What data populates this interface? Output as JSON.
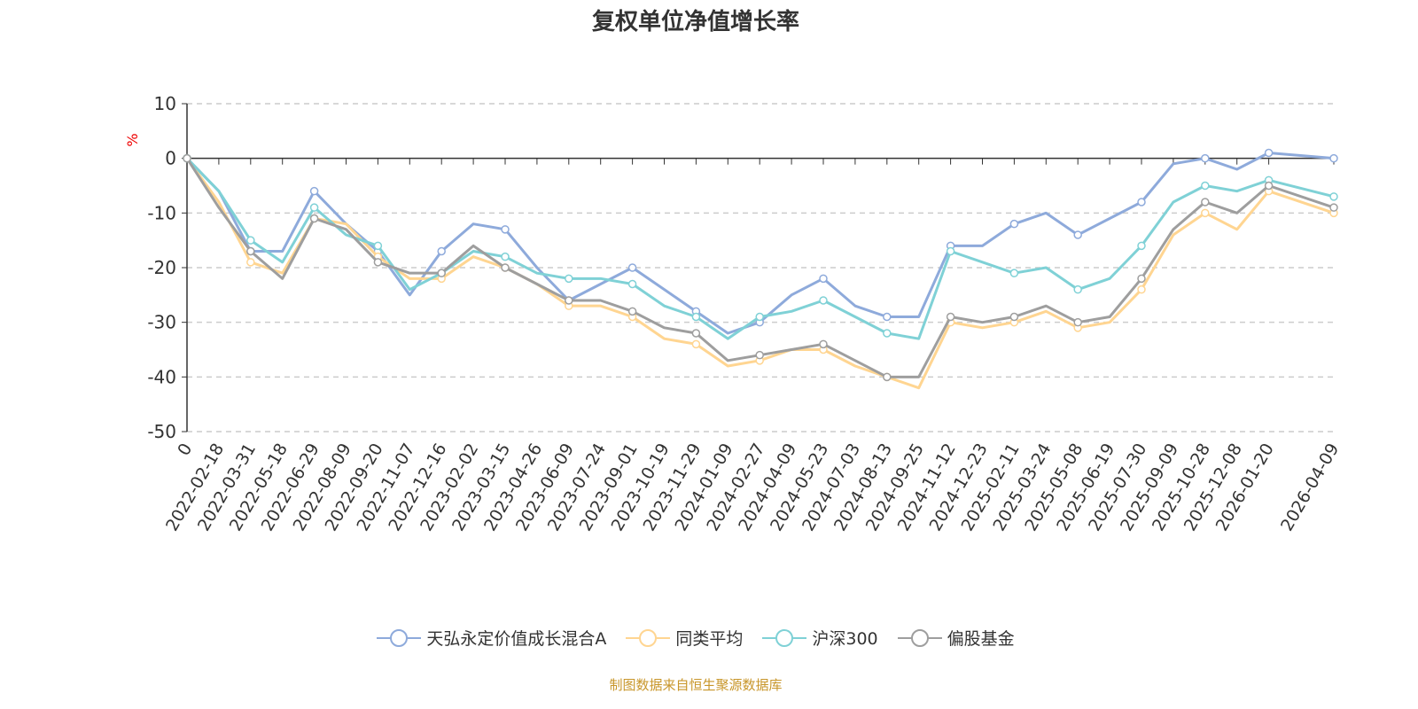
{
  "chart_data": {
    "type": "line",
    "title": "复权单位净值增长率",
    "ylabel": "%",
    "xlabel": "",
    "ylim": [
      -50,
      10
    ],
    "yticks": [
      10,
      0,
      -10,
      -20,
      -30,
      -40,
      -50
    ],
    "grid": true,
    "legend_position": "bottom",
    "x": [
      "0",
      "2022-02-18",
      "2022-03-31",
      "2022-05-18",
      "2022-06-29",
      "2022-08-09",
      "2022-09-20",
      "2022-11-07",
      "2022-12-16",
      "2023-02-02",
      "2023-03-15",
      "2023-04-26",
      "2023-06-09",
      "2023-07-24",
      "2023-09-01",
      "2023-10-19",
      "2023-11-29",
      "2024-01-09",
      "2024-02-27",
      "2024-04-09",
      "2024-05-23",
      "2024-07-03",
      "2024-08-13",
      "2024-09-25",
      "2024-11-12",
      "2024-12-23",
      "2025-02-11",
      "2025-03-24",
      "2025-05-08",
      "2025-06-19",
      "2025-07-30",
      "2025-09-09",
      "2025-10-28",
      "2025-12-08",
      "2026-01-20",
      "2026-04-09"
    ],
    "series": [
      {
        "name": "天弘永定价值成长混合A",
        "color": "#8eaadb",
        "values": [
          0,
          -6,
          -17,
          -17,
          -6,
          -12,
          -17,
          -25,
          -17,
          -12,
          -13,
          -20,
          -26,
          -23,
          -20,
          -24,
          -28,
          -32,
          -30,
          -25,
          -22,
          -27,
          -29,
          -29,
          -16,
          -16,
          -12,
          -10,
          -14,
          -11,
          -8,
          -1,
          0,
          -2,
          1,
          0
        ]
      },
      {
        "name": "同类平均",
        "color": "#ffd591",
        "values": [
          0,
          -8,
          -19,
          -21,
          -11,
          -12,
          -18,
          -22,
          -22,
          -18,
          -20,
          -23,
          -27,
          -27,
          -29,
          -33,
          -34,
          -38,
          -37,
          -35,
          -35,
          -38,
          -40,
          -42,
          -30,
          -31,
          -30,
          -28,
          -31,
          -30,
          -24,
          -14,
          -10,
          -13,
          -6,
          -10
        ]
      },
      {
        "name": "沪深300",
        "color": "#7fd1d6",
        "values": [
          0,
          -6,
          -15,
          -19,
          -9,
          -14,
          -16,
          -24,
          -21,
          -17,
          -18,
          -21,
          -22,
          -22,
          -23,
          -27,
          -29,
          -33,
          -29,
          -28,
          -26,
          -29,
          -32,
          -33,
          -17,
          -19,
          -21,
          -20,
          -24,
          -22,
          -16,
          -8,
          -5,
          -6,
          -4,
          -7
        ]
      },
      {
        "name": "偏股基金",
        "color": "#9e9e9e",
        "values": [
          0,
          -9,
          -17,
          -22,
          -11,
          -13,
          -19,
          -21,
          -21,
          -16,
          -20,
          -23,
          -26,
          -26,
          -28,
          -31,
          -32,
          -37,
          -36,
          -35,
          -34,
          -37,
          -40,
          -40,
          -29,
          -30,
          -29,
          -27,
          -30,
          -29,
          -22,
          -13,
          -8,
          -10,
          -5,
          -9
        ]
      }
    ]
  },
  "footer": "制图数据来自恒生聚源数据库"
}
